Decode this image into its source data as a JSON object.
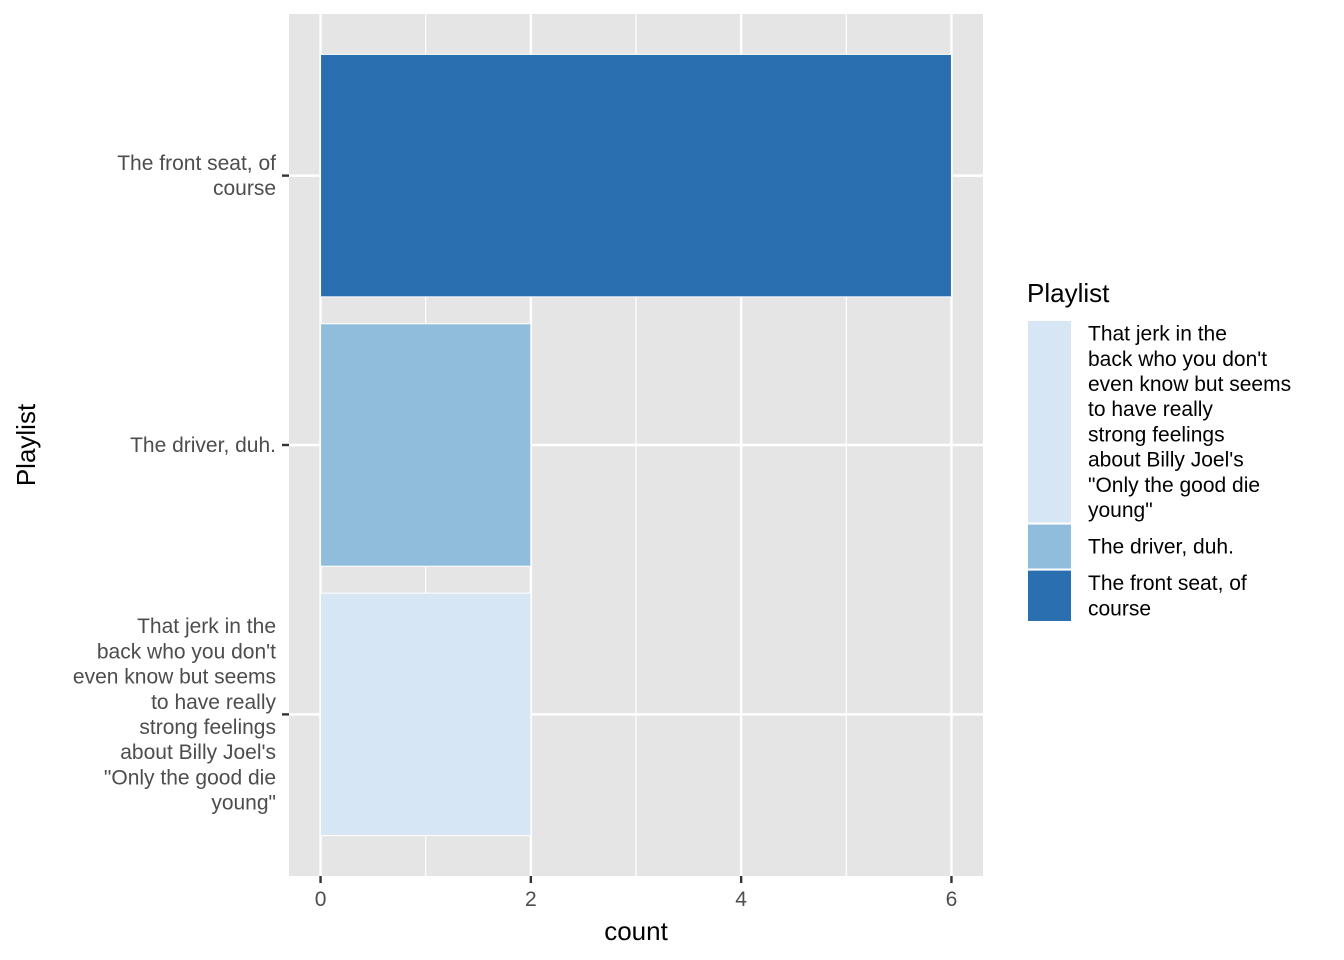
{
  "chart_data": {
    "type": "bar",
    "orientation": "horizontal",
    "categories": [
      "That jerk in the back who you don't even know but seems to have really strong feelings about Billy Joel's \"Only the good die young\"",
      "The driver, duh.",
      "The front seat, of course"
    ],
    "category_lines": [
      [
        "That jerk in the",
        "back who you don't",
        "even know but seems",
        "to have really",
        "strong feelings",
        "about Billy Joel's",
        "\"Only the good die",
        "young\""
      ],
      [
        "The driver, duh."
      ],
      [
        "The front seat, of",
        "course"
      ]
    ],
    "values": [
      2,
      2,
      6
    ],
    "colors": [
      "#d7e6f4",
      "#90bddb",
      "#2a6fb0"
    ],
    "xlabel": "count",
    "ylabel": "Playlist",
    "xlim": [
      -0.3,
      6.3
    ],
    "xticks": [
      0,
      2,
      4,
      6
    ],
    "grid": true,
    "background": "#e5e5e5",
    "legend": {
      "title": "Playlist",
      "placement": "right",
      "entries": [
        {
          "lines": [
            "That jerk in the",
            "back who you don't",
            "even know but seems",
            "to have really",
            "strong feelings",
            "about Billy Joel's",
            "\"Only the good die",
            "young\""
          ],
          "color": "#d7e6f4"
        },
        {
          "lines": [
            "The driver, duh."
          ],
          "color": "#90bddb"
        },
        {
          "lines": [
            "The front seat, of",
            "course"
          ],
          "color": "#2a6fb0"
        }
      ]
    }
  }
}
